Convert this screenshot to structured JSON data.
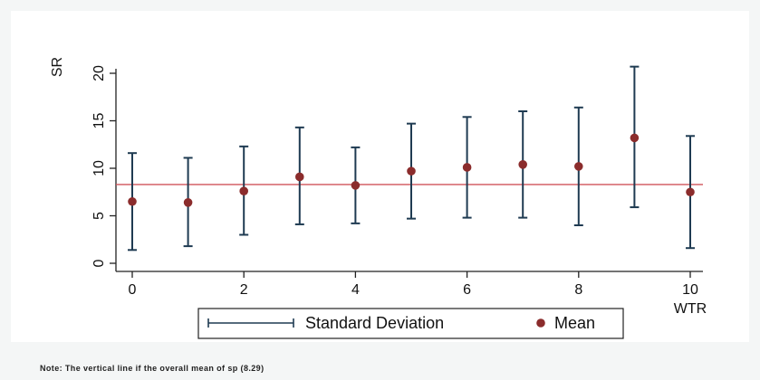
{
  "chart_data": {
    "type": "scatter",
    "xlabel": "WTR",
    "ylabel": "SR",
    "xlim": [
      0,
      10
    ],
    "ylim": [
      0,
      20
    ],
    "x_ticks": [
      "0",
      "2",
      "4",
      "6",
      "8",
      "10"
    ],
    "y_ticks": [
      "0",
      "5",
      "10",
      "15",
      "20"
    ],
    "x": [
      0,
      1,
      2,
      3,
      4,
      5,
      6,
      7,
      8,
      9,
      10
    ],
    "series": [
      {
        "name": "Mean",
        "values": [
          6.5,
          6.4,
          7.6,
          9.1,
          8.2,
          9.7,
          10.1,
          10.4,
          10.2,
          13.2,
          7.5
        ]
      },
      {
        "name": "Standard Deviation",
        "lower": [
          1.4,
          1.8,
          3.0,
          4.1,
          4.2,
          4.7,
          4.8,
          4.8,
          4.0,
          5.9,
          1.6
        ],
        "upper": [
          11.6,
          11.1,
          12.3,
          14.3,
          12.2,
          14.7,
          15.4,
          16.0,
          16.4,
          20.7,
          13.4
        ]
      }
    ],
    "reference_line": {
      "y": 8.29
    },
    "colors": {
      "mean": "#8b2c2c",
      "error_bar": "#1f3b52",
      "reference": "#d0545a"
    },
    "legend": {
      "position": "bottom",
      "entries": [
        "Standard Deviation",
        "Mean"
      ]
    },
    "grid": false
  },
  "note": "Note: The vertical line if the overall mean of sp (8.29)"
}
